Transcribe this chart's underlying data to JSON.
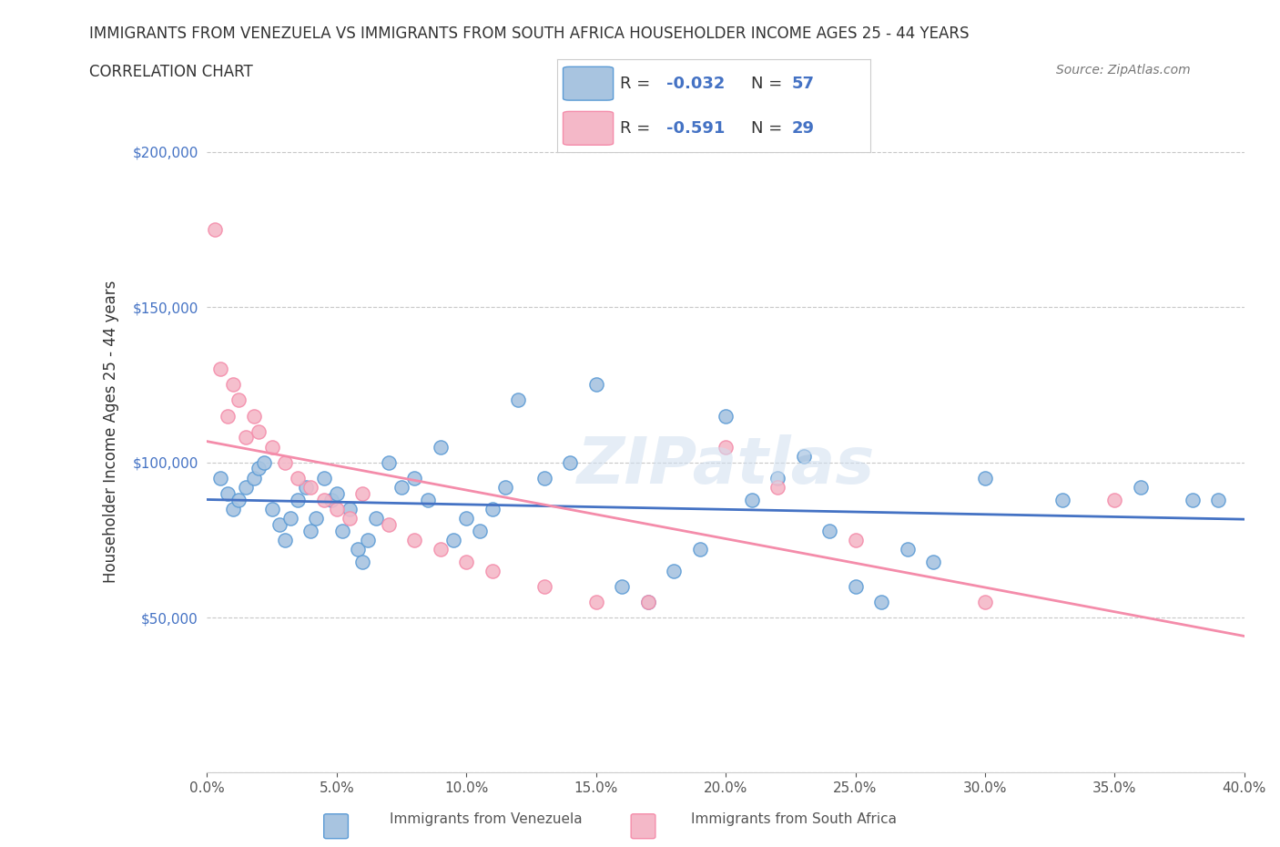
{
  "title_line1": "IMMIGRANTS FROM VENEZUELA VS IMMIGRANTS FROM SOUTH AFRICA HOUSEHOLDER INCOME AGES 25 - 44 YEARS",
  "title_line2": "CORRELATION CHART",
  "source": "Source: ZipAtlas.com",
  "xlabel_bottom": "",
  "ylabel": "Householder Income Ages 25 - 44 years",
  "x_ticks": [
    0.0,
    5.0,
    10.0,
    15.0,
    20.0,
    25.0,
    30.0,
    35.0,
    40.0
  ],
  "x_tick_labels": [
    "0.0%",
    "5.0%",
    "10.0%",
    "15.0%",
    "20.0%",
    "25.0%",
    "30.0%",
    "35.0%",
    "40.0%"
  ],
  "y_ticks": [
    0,
    50000,
    100000,
    150000,
    200000
  ],
  "y_tick_labels": [
    "",
    "$50,000",
    "$100,000",
    "$150,000",
    "$200,000"
  ],
  "xlim": [
    0.0,
    40.0
  ],
  "ylim": [
    0,
    220000
  ],
  "legend_r1": "R = -0.032",
  "legend_n1": "N = 57",
  "legend_r2": "R = -0.591",
  "legend_n2": "N = 29",
  "blue_color": "#a8c4e0",
  "blue_edge": "#5b9bd5",
  "pink_color": "#f4b8c8",
  "pink_edge": "#f48caa",
  "blue_line_color": "#4472c4",
  "pink_line_color": "#f48caa",
  "blue_r": -0.032,
  "blue_n": 57,
  "pink_r": -0.591,
  "pink_n": 29,
  "watermark": "ZIPatlas",
  "grid_color": "#c8c8c8",
  "venezuela_x": [
    0.5,
    0.8,
    1.0,
    1.2,
    1.5,
    1.8,
    2.0,
    2.2,
    2.5,
    2.8,
    3.0,
    3.2,
    3.5,
    3.8,
    4.0,
    4.2,
    4.5,
    4.8,
    5.0,
    5.2,
    5.5,
    5.8,
    6.0,
    6.2,
    6.5,
    7.0,
    7.5,
    8.0,
    8.5,
    9.0,
    9.5,
    10.0,
    10.5,
    11.0,
    11.5,
    12.0,
    13.0,
    14.0,
    15.0,
    16.0,
    17.0,
    18.0,
    19.0,
    20.0,
    21.0,
    22.0,
    23.0,
    24.0,
    25.0,
    26.0,
    27.0,
    28.0,
    30.0,
    33.0,
    36.0,
    38.0,
    39.0
  ],
  "venezuela_y": [
    95000,
    90000,
    85000,
    88000,
    92000,
    95000,
    98000,
    100000,
    85000,
    80000,
    75000,
    82000,
    88000,
    92000,
    78000,
    82000,
    95000,
    88000,
    90000,
    78000,
    85000,
    72000,
    68000,
    75000,
    82000,
    100000,
    92000,
    95000,
    88000,
    105000,
    75000,
    82000,
    78000,
    85000,
    92000,
    120000,
    95000,
    100000,
    125000,
    60000,
    55000,
    65000,
    72000,
    115000,
    88000,
    95000,
    102000,
    78000,
    60000,
    55000,
    72000,
    68000,
    95000,
    88000,
    92000,
    88000,
    88000
  ],
  "southafrica_x": [
    0.3,
    0.5,
    0.8,
    1.0,
    1.2,
    1.5,
    1.8,
    2.0,
    2.5,
    3.0,
    3.5,
    4.0,
    4.5,
    5.0,
    5.5,
    6.0,
    7.0,
    8.0,
    9.0,
    10.0,
    11.0,
    13.0,
    15.0,
    17.0,
    20.0,
    22.0,
    25.0,
    30.0,
    35.0
  ],
  "southafrica_y": [
    175000,
    130000,
    115000,
    125000,
    120000,
    108000,
    115000,
    110000,
    105000,
    100000,
    95000,
    92000,
    88000,
    85000,
    82000,
    90000,
    80000,
    75000,
    72000,
    68000,
    65000,
    60000,
    55000,
    55000,
    105000,
    92000,
    75000,
    55000,
    88000
  ]
}
